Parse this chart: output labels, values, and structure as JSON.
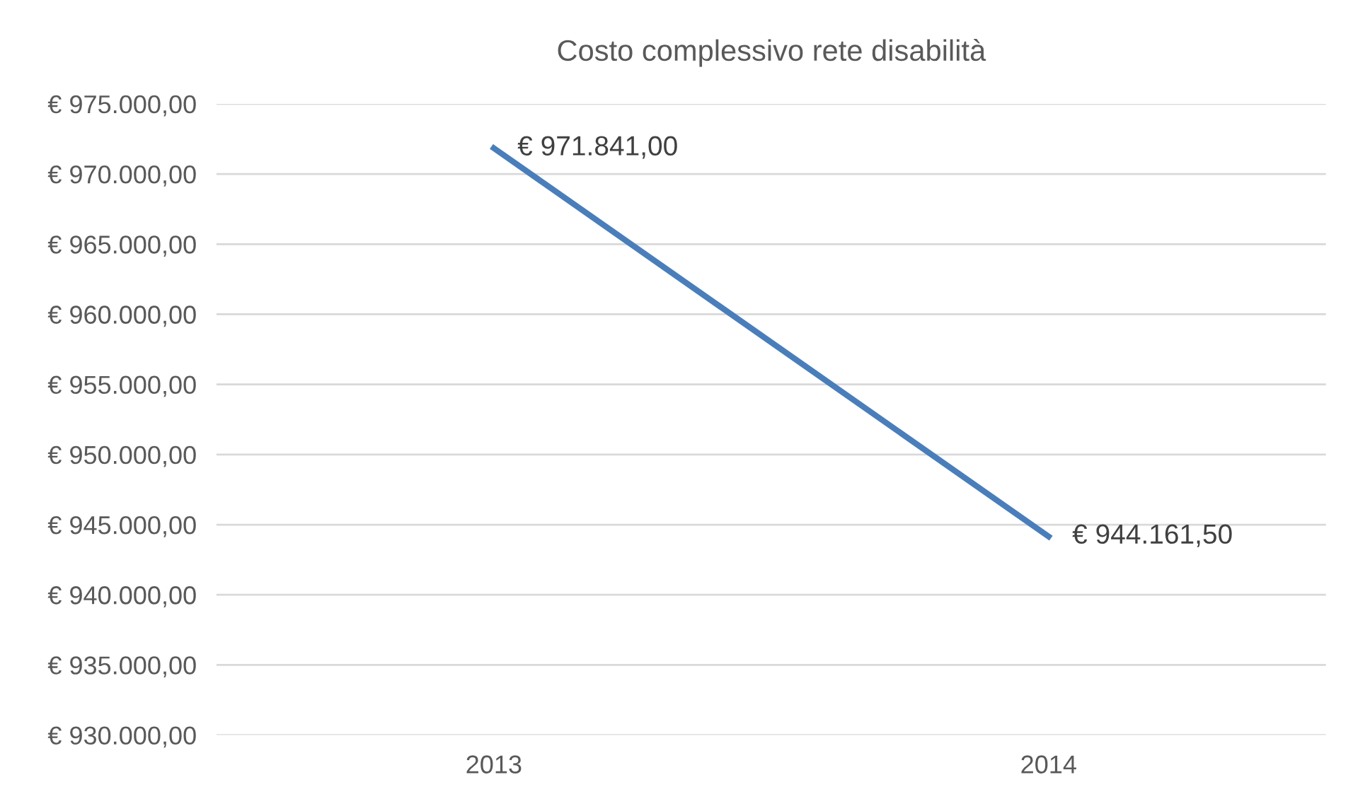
{
  "chart_data": {
    "type": "line",
    "title": "Costo complessivo rete disabilità",
    "categories": [
      "2013",
      "2014"
    ],
    "series": [
      {
        "color": "#4a7ebb",
        "values": [
          971841.0,
          944161.5
        ],
        "value_labels": [
          "€ 971.841,00",
          "€ 944.161,50"
        ]
      }
    ],
    "ylim": [
      930000,
      975000
    ],
    "yticks": [
      {
        "value": 930000,
        "label": "€ 930.000,00"
      },
      {
        "value": 935000,
        "label": "€ 935.000,00"
      },
      {
        "value": 940000,
        "label": "€ 940.000,00"
      },
      {
        "value": 945000,
        "label": "€ 945.000,00"
      },
      {
        "value": 950000,
        "label": "€ 950.000,00"
      },
      {
        "value": 955000,
        "label": "€ 955.000,00"
      },
      {
        "value": 960000,
        "label": "€ 960.000,00"
      },
      {
        "value": 965000,
        "label": "€ 965.000,00"
      },
      {
        "value": 970000,
        "label": "€ 970.000,00"
      },
      {
        "value": 975000,
        "label": "€ 975.000,00"
      }
    ],
    "grid": "y",
    "marker": "none",
    "line_style": "solid"
  }
}
